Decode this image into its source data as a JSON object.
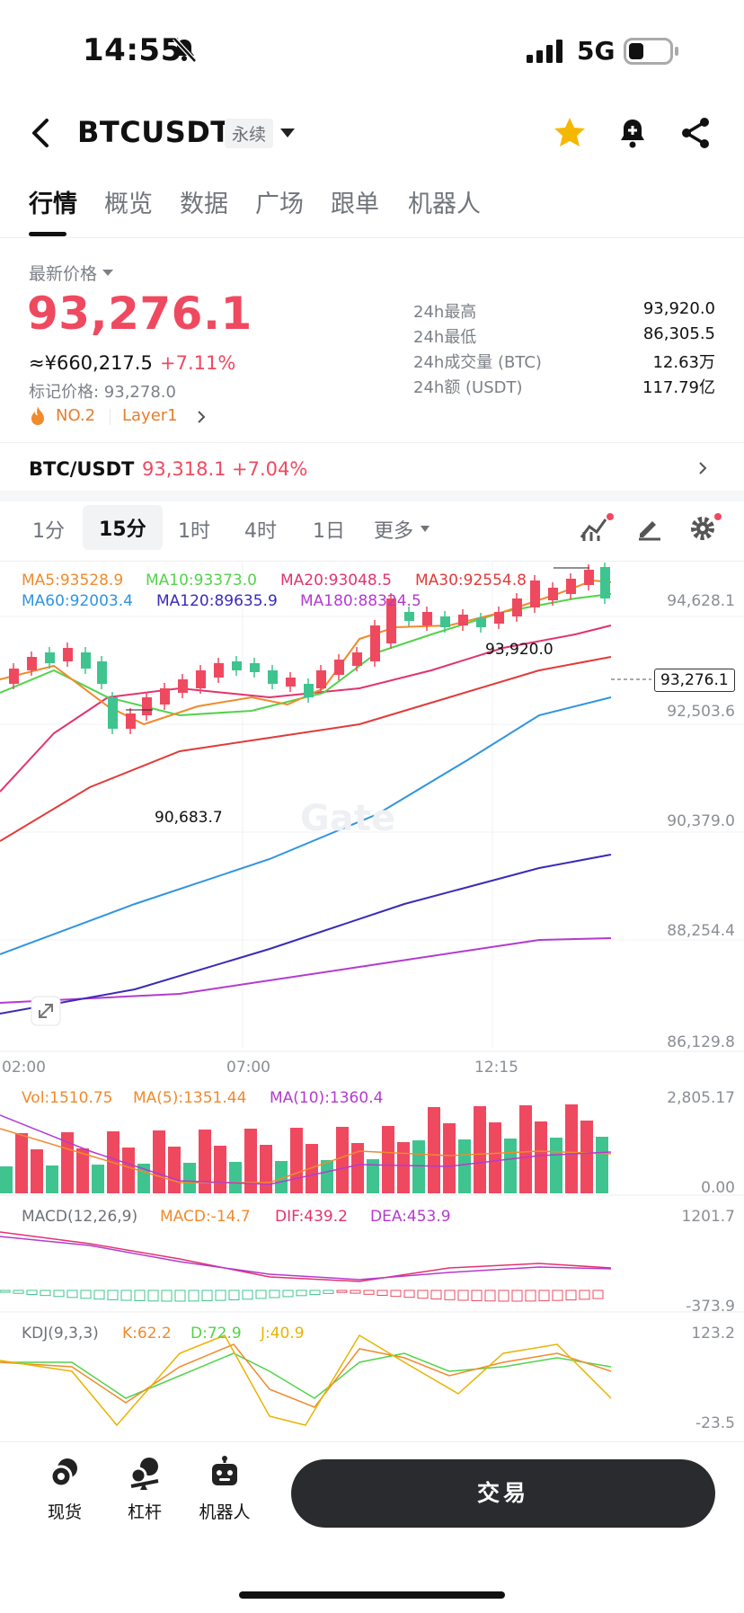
{
  "status_bar": {
    "time": "14:55",
    "network": "5G"
  },
  "header": {
    "symbol": "BTCUSDT",
    "contract_type": "永续"
  },
  "tabs": [
    "行情",
    "概览",
    "数据",
    "广场",
    "跟单",
    "机器人"
  ],
  "price": {
    "latest_label": "最新价格",
    "last": "93,276.1",
    "cny": "≈¥660,217.5",
    "change": "+7.11%",
    "mark": "标记价格: 93,278.0",
    "rank": "NO.2",
    "category": "Layer1"
  },
  "stats": [
    {
      "label": "24h最高",
      "value": "93,920.0"
    },
    {
      "label": "24h最低",
      "value": "86,305.5"
    },
    {
      "label": "24h成交量 (BTC)",
      "value": "12.63万"
    },
    {
      "label": "24h额 (USDT)",
      "value": "117.79亿"
    }
  ],
  "spot_pair": {
    "label": "BTC/USDT",
    "price": "93,318.1",
    "change": "+7.04%"
  },
  "intervals": [
    "1分",
    "15分",
    "1时",
    "4时",
    "1日",
    "更多"
  ],
  "colors": {
    "up": "#ef4960",
    "down": "#3fc48f",
    "accent": "#f5b800"
  },
  "main_chart": {
    "ma_legend": [
      {
        "text": "MA5:93528.9",
        "color": "#f08a2c"
      },
      {
        "text": "MA10:93373.0",
        "color": "#52d34a"
      },
      {
        "text": "MA20:93048.5",
        "color": "#e2336e"
      },
      {
        "text": "MA30:92554.8",
        "color": "#e23a3a"
      },
      {
        "text": "MA60:92003.4",
        "color": "#2f94e0"
      },
      {
        "text": "MA120:89635.9",
        "color": "#3a2ab8"
      },
      {
        "text": "MA180:88324.5",
        "color": "#b43ad0"
      }
    ],
    "y_ticks": [
      "94,628.1",
      "92,503.6",
      "90,379.0",
      "88,254.4",
      "86,129.8"
    ],
    "x_ticks": [
      "02:00",
      "07:00",
      "12:15"
    ],
    "high_label": "93,920.0",
    "low_label": "90,683.7",
    "last_price_tag": "93,276.1",
    "watermark": "Gate"
  },
  "volume": {
    "legend": [
      {
        "text": "Vol:1510.75",
        "color": "#f08a2c"
      },
      {
        "text": "MA(5):1351.44",
        "color": "#f08a2c"
      },
      {
        "text": "MA(10):1360.4",
        "color": "#b43ad0"
      }
    ],
    "y_ticks": [
      "2,805.17",
      "0.00"
    ]
  },
  "macd": {
    "legend": [
      {
        "text": "MACD(12,26,9)",
        "color": "#6d7178"
      },
      {
        "text": "MACD:-14.7",
        "color": "#f08a2c"
      },
      {
        "text": "DIF:439.2",
        "color": "#e2336e"
      },
      {
        "text": "DEA:453.9",
        "color": "#b43ad0"
      }
    ],
    "y_ticks": [
      "1201.7",
      "-373.9"
    ]
  },
  "kdj": {
    "legend": [
      {
        "text": "KDJ(9,3,3)",
        "color": "#6d7178"
      },
      {
        "text": "K:62.2",
        "color": "#f08a2c"
      },
      {
        "text": "D:72.9",
        "color": "#52d34a"
      },
      {
        "text": "J:40.9",
        "color": "#e8b400"
      }
    ],
    "y_ticks": [
      "123.2",
      "-23.5"
    ]
  },
  "bottom_nav": {
    "items": [
      "现货",
      "杠杆",
      "机器人"
    ],
    "trade_label": "交易"
  }
}
